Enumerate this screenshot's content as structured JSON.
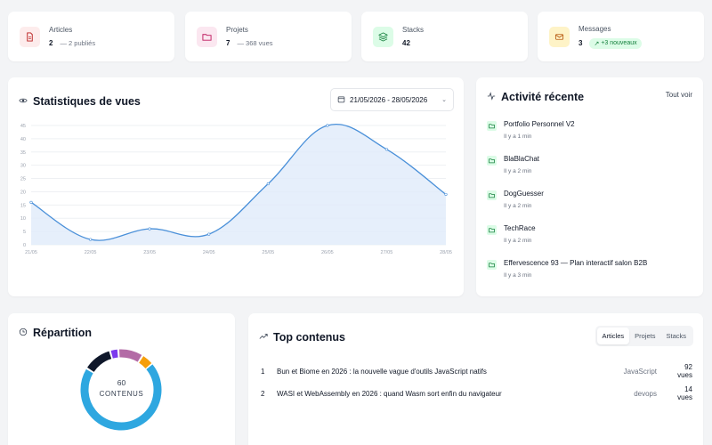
{
  "stats": [
    {
      "title": "Articles",
      "value": "2",
      "sub": "2 publiés",
      "icon": "document-icon",
      "color": "#fee2e2"
    },
    {
      "title": "Projets",
      "value": "7",
      "sub": "368 vues",
      "icon": "folder-icon",
      "color": "#fce7f3"
    },
    {
      "title": "Stacks",
      "value": "42",
      "sub": "",
      "icon": "layers-icon",
      "color": "#dcfce7"
    },
    {
      "title": "Messages",
      "value": "3",
      "sub": "+3 nouveaux",
      "icon": "mail-icon",
      "color": "#fef3c7"
    }
  ],
  "views": {
    "title": "Statistiques de vues",
    "daterange": "21/05/2026 - 28/05/2026"
  },
  "chart_data": {
    "type": "area",
    "title": "",
    "xlabel": "",
    "ylabel": "",
    "categories": [
      "21/05",
      "22/05",
      "23/05",
      "24/05",
      "25/05",
      "26/05",
      "27/05",
      "28/05"
    ],
    "yticks": [
      0,
      5,
      10,
      15,
      20,
      25,
      30,
      35,
      40,
      45
    ],
    "ylim": [
      0,
      45
    ],
    "values": [
      16,
      2,
      6,
      4,
      23,
      45,
      36,
      19
    ],
    "grid": true,
    "line_color": "#4a90d9",
    "fill_color": "#e0ebfa"
  },
  "activity": {
    "title": "Activité récente",
    "see_all": "Tout voir",
    "items": [
      {
        "title": "Portfolio Personnel V2",
        "time": "Il y a 1 min"
      },
      {
        "title": "BlaBlaChat",
        "time": "Il y a 2 min"
      },
      {
        "title": "DogGuesser",
        "time": "Il y a 2 min"
      },
      {
        "title": "TechRace",
        "time": "Il y a 2 min"
      },
      {
        "title": "Effervescence 93 — Plan interactif salon B2B",
        "time": "Il y a 3 min"
      }
    ]
  },
  "repartition": {
    "title": "Répartition",
    "total": "60",
    "total_label": "CONTENUS",
    "segments": [
      {
        "value": 42,
        "color": "#2ea7e0"
      },
      {
        "value": 7,
        "color": "#0f172a"
      },
      {
        "value": 2,
        "color": "#7c3aed"
      },
      {
        "value": 6,
        "color": "#b36ba6"
      },
      {
        "value": 3,
        "color": "#f59e0b"
      }
    ]
  },
  "top": {
    "title": "Top contenus",
    "tabs": [
      "Articles",
      "Projets",
      "Stacks"
    ],
    "active_tab": "Articles",
    "rows": [
      {
        "rank": "1",
        "title": "Bun et Biome en 2026 : la nouvelle vague d'outils JavaScript natifs",
        "category": "JavaScript",
        "views": "92 vues"
      },
      {
        "rank": "2",
        "title": "WASI et WebAssembly en 2026 : quand Wasm sort enfin du navigateur",
        "category": "devops",
        "views": "14 vues"
      }
    ]
  }
}
